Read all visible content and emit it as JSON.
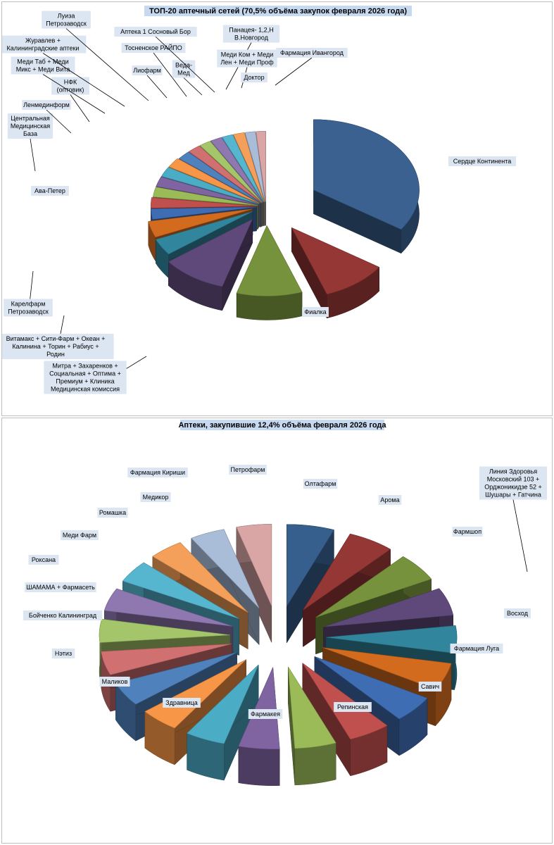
{
  "chart_data": [
    {
      "type": "pie",
      "title": "ТОП-20 аптечный сетей (70,5% объёма закупок февраля 2026 года)",
      "style": "3d-exploded",
      "slices": [
        {
          "label": "Сердце Континента",
          "value": 30.6,
          "color": "#3a6190"
        },
        {
          "label": "Фиалка",
          "value": 9.0,
          "color": "#953735"
        },
        {
          "label": "Митра + Захаренков + Социальная + Оптима + Премиум + Клиника Медицинская комиссия",
          "value": 8.9,
          "color": "#76923c"
        },
        {
          "label": "Витамакс + Сити-Фарм + Океан + Калинина + Торин + Рабиус + Родин",
          "value": 8.9,
          "color": "#5f497a"
        },
        {
          "label": "Карелфарм Петрозаводск",
          "value": 3.4,
          "color": "#31859c"
        },
        {
          "label": "Ава-Петер",
          "value": 3.3,
          "color": "#d36b1f"
        },
        {
          "label": "Центральная Медицинская База",
          "value": 2.1,
          "color": "#3f6db3"
        },
        {
          "label": "Ленмединформ",
          "value": 2.1,
          "color": "#c0504d"
        },
        {
          "label": "НФК (оптовик)",
          "value": 2.0,
          "color": "#9bbb59"
        },
        {
          "label": "Меди Таб + Меди Микс + Меди Вита",
          "value": 2.0,
          "color": "#8064a2"
        },
        {
          "label": "Журавлев + Калининградские аптеки",
          "value": 2.0,
          "color": "#4bacc6"
        },
        {
          "label": "Луиза Петрозаводск",
          "value": 2.0,
          "color": "#f79646"
        },
        {
          "label": "Лиофарм",
          "value": 1.8,
          "color": "#4f81bd"
        },
        {
          "label": "Тосненское РАЙПО",
          "value": 1.8,
          "color": "#d07070"
        },
        {
          "label": "Веда-Мед",
          "value": 1.6,
          "color": "#a5c56a"
        },
        {
          "label": "Аптека 1 Сосновый Бор",
          "value": 1.6,
          "color": "#8f78b0"
        },
        {
          "label": "Панацея- 1,2,Н В.Новгород",
          "value": 1.5,
          "color": "#56b6cf"
        },
        {
          "label": "Меди Ком + Меди Лен + Меди Проф",
          "value": 1.5,
          "color": "#f5a05a"
        },
        {
          "label": "Доктор",
          "value": 1.4,
          "color": "#a9bcd8"
        },
        {
          "label": "Фармация Ивангород",
          "value": 1.3,
          "color": "#d9a5a5"
        }
      ]
    },
    {
      "type": "pie",
      "title": "Аптеки, закупившие 12,4% объёма февраля 2026 года",
      "style": "3d-exploded",
      "slices": [
        {
          "label": "Олтафарм",
          "value": 6.5,
          "color": "#375f8d"
        },
        {
          "label": "Арома",
          "value": 6.4,
          "color": "#953735"
        },
        {
          "label": "Фармшоп",
          "value": 6.2,
          "color": "#76923c"
        },
        {
          "label": "Линия Здоровья Московский 103 + Орджоникидзе 52 + Шушары + Гатчина",
          "value": 6.1,
          "color": "#5f497a"
        },
        {
          "label": "Восход",
          "value": 6.0,
          "color": "#31859c"
        },
        {
          "label": "Фармация Луга",
          "value": 6.0,
          "color": "#d36b1f"
        },
        {
          "label": "Савич",
          "value": 5.9,
          "color": "#3f6db3"
        },
        {
          "label": "Репинская",
          "value": 5.8,
          "color": "#c0504d"
        },
        {
          "label": "Фармакея",
          "value": 5.7,
          "color": "#9bbb59"
        },
        {
          "label": "Здравница",
          "value": 5.6,
          "color": "#8064a2"
        },
        {
          "label": "Маликов",
          "value": 5.5,
          "color": "#4bacc6"
        },
        {
          "label": "Нэтиз",
          "value": 5.4,
          "color": "#f79646"
        },
        {
          "label": "Бойченко Калининград",
          "value": 5.3,
          "color": "#4f81bd"
        },
        {
          "label": "ШАМАМА + Фармасеть",
          "value": 5.2,
          "color": "#d07070"
        },
        {
          "label": "Роксана",
          "value": 5.1,
          "color": "#a5c56a"
        },
        {
          "label": "Меди Фарм",
          "value": 5.0,
          "color": "#8f78b0"
        },
        {
          "label": "Ромашка",
          "value": 4.9,
          "color": "#56b6cf"
        },
        {
          "label": "Медикор",
          "value": 4.8,
          "color": "#f5a05a"
        },
        {
          "label": "Фармация Кириши",
          "value": 4.8,
          "color": "#a9bcd8"
        },
        {
          "label": "Петрофарм",
          "value": 4.8,
          "color": "#d9a5a5"
        }
      ]
    }
  ]
}
